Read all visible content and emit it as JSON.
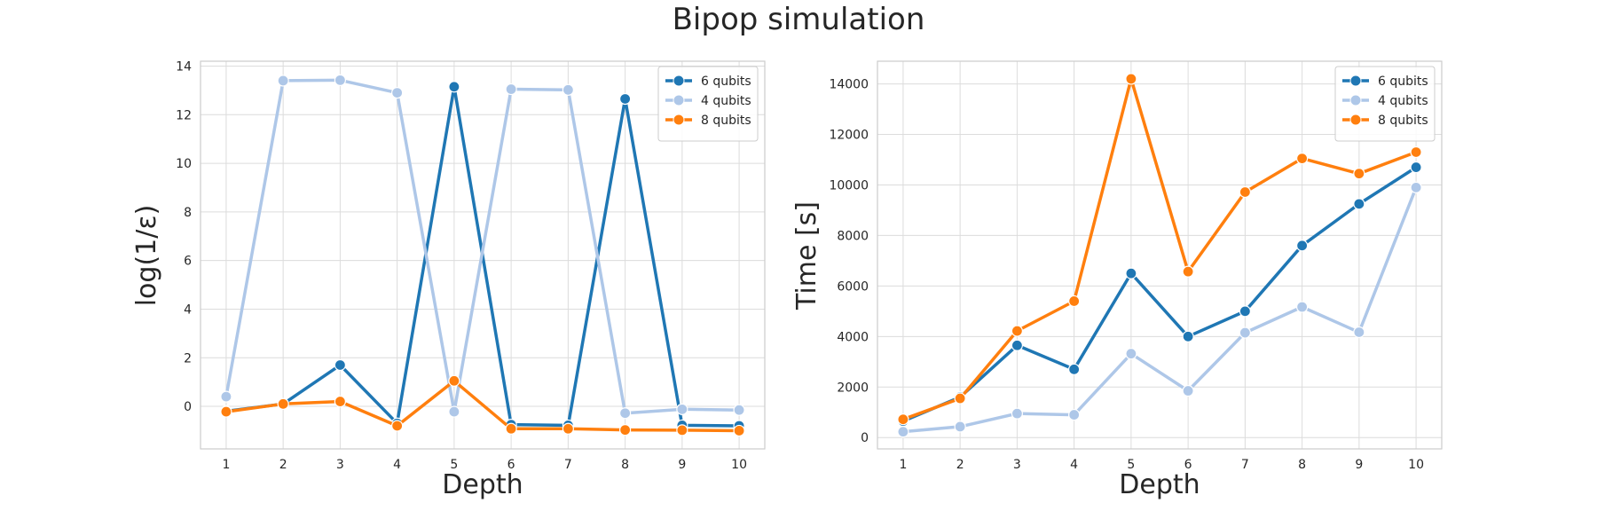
{
  "suptitle": "Bipop simulation",
  "chart_data": [
    {
      "type": "line",
      "xlabel": "Depth",
      "ylabel": "log(1/ε)",
      "x": [
        1,
        2,
        3,
        4,
        5,
        6,
        7,
        8,
        9,
        10
      ],
      "xlim": [
        0.55,
        10.45
      ],
      "ylim": [
        -1.75,
        14.2
      ],
      "yticks": [
        0,
        2,
        4,
        6,
        8,
        10,
        12,
        14
      ],
      "grid": true,
      "legend": "top-right",
      "series": [
        {
          "name": "6 qubits",
          "color": "#1f77b4",
          "values": [
            -0.2,
            0.1,
            1.7,
            -0.7,
            13.15,
            -0.75,
            -0.78,
            12.65,
            -0.78,
            -0.8
          ]
        },
        {
          "name": "4 qubits",
          "color": "#aec7e8",
          "values": [
            0.4,
            13.4,
            13.42,
            12.9,
            -0.22,
            13.05,
            13.02,
            -0.28,
            -0.12,
            -0.15
          ]
        },
        {
          "name": "8 qubits",
          "color": "#ff7f0e",
          "values": [
            -0.22,
            0.1,
            0.2,
            -0.8,
            1.05,
            -0.92,
            -0.92,
            -0.97,
            -0.98,
            -1.0
          ]
        }
      ]
    },
    {
      "type": "line",
      "xlabel": "Depth",
      "ylabel": "Time [s]",
      "x": [
        1,
        2,
        3,
        4,
        5,
        6,
        7,
        8,
        9,
        10
      ],
      "xlim": [
        0.55,
        10.45
      ],
      "ylim": [
        -450,
        14900
      ],
      "yticks": [
        0,
        2000,
        4000,
        6000,
        8000,
        10000,
        12000,
        14000
      ],
      "grid": true,
      "legend": "top-right",
      "series": [
        {
          "name": "6 qubits",
          "color": "#1f77b4",
          "values": [
            650,
            1600,
            3650,
            2700,
            6500,
            4000,
            5000,
            7600,
            9250,
            10700
          ]
        },
        {
          "name": "4 qubits",
          "color": "#aec7e8",
          "values": [
            230,
            430,
            950,
            900,
            3320,
            1850,
            4150,
            5170,
            4170,
            9900
          ]
        },
        {
          "name": "8 qubits",
          "color": "#ff7f0e",
          "values": [
            720,
            1550,
            4220,
            5400,
            14200,
            6570,
            9720,
            11050,
            10450,
            11300
          ]
        }
      ]
    }
  ]
}
